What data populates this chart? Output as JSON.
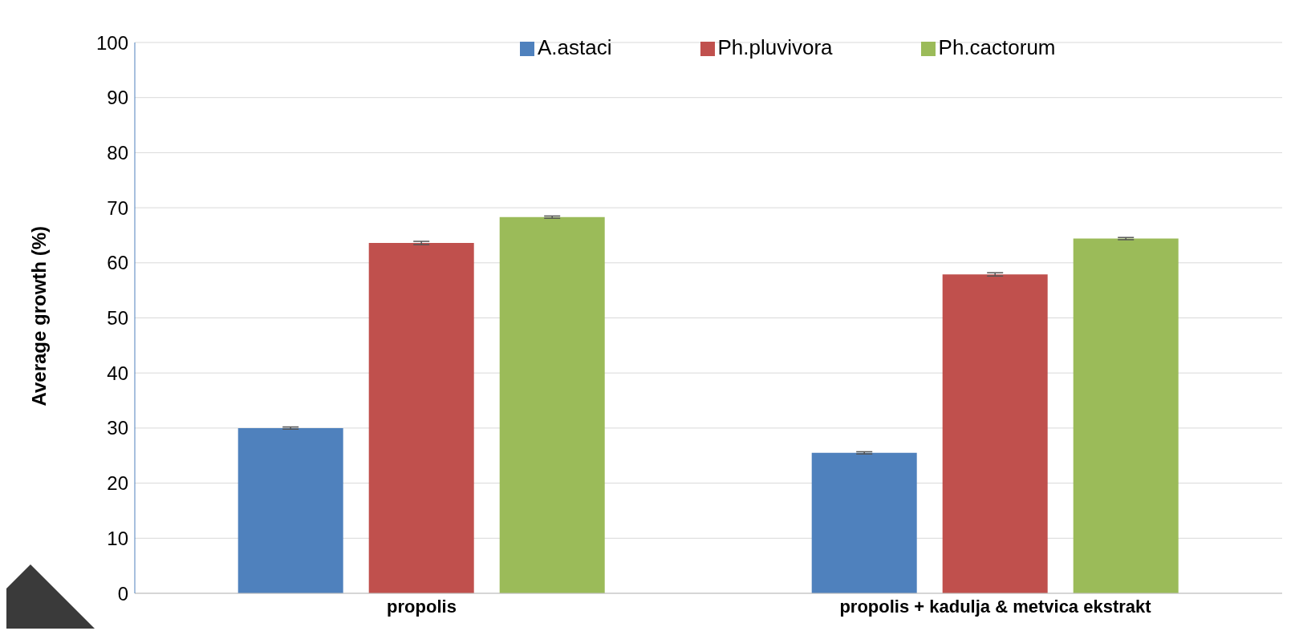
{
  "chart_data": {
    "type": "bar",
    "ylabel": "Average growth (%)",
    "categories": [
      "propolis",
      "propolis +  kadulja  & metvica ekstrakt"
    ],
    "series": [
      {
        "name": "A.astaci",
        "color": "#4f81bd",
        "values": [
          30.0,
          25.5
        ],
        "errors": [
          0.2,
          0.2
        ]
      },
      {
        "name": "Ph.pluvivora",
        "color": "#c0504d",
        "values": [
          63.6,
          57.9
        ],
        "errors": [
          0.3,
          0.3
        ]
      },
      {
        "name": "Ph.cactorum",
        "color": "#9bbb59",
        "values": [
          68.3,
          64.4
        ],
        "errors": [
          0.2,
          0.2
        ]
      }
    ],
    "ylim": [
      0,
      100
    ],
    "yticks": [
      0,
      10,
      20,
      30,
      40,
      50,
      60,
      70,
      80,
      90,
      100
    ],
    "grid": "y",
    "legend": "top"
  }
}
